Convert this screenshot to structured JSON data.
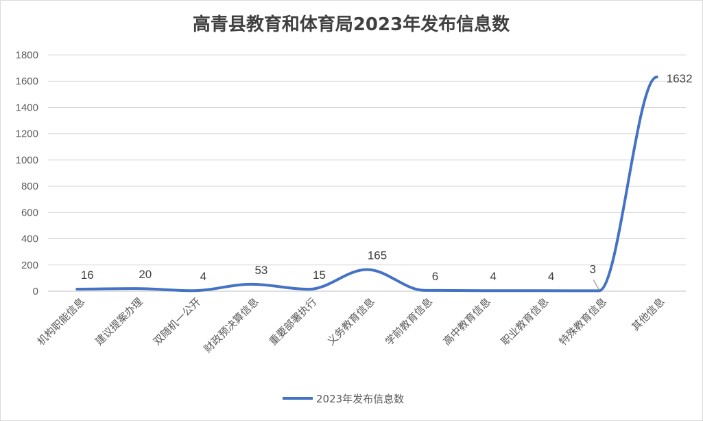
{
  "chart_data": {
    "type": "line",
    "title": "高青县教育和体育局2023年发布信息数",
    "categories": [
      "机构职能信息",
      "建议提案办理",
      "双随机一公开",
      "财政预决算信息",
      "重要部署执行",
      "义务教育信息",
      "学前教育信息",
      "高中教育信息",
      "职业教育信息",
      "特殊教育信息",
      "其他信息"
    ],
    "series": [
      {
        "name": "2023年发布信息数",
        "values": [
          16,
          20,
          4,
          53,
          15,
          165,
          6,
          4,
          4,
          3,
          1632
        ],
        "color": "#4472C4"
      }
    ],
    "ylim": [
      0,
      1800
    ],
    "yticks": [
      0,
      200,
      400,
      600,
      800,
      1000,
      1200,
      1400,
      1600,
      1800
    ],
    "grid": true,
    "data_labels": true,
    "legend": "bottom"
  }
}
